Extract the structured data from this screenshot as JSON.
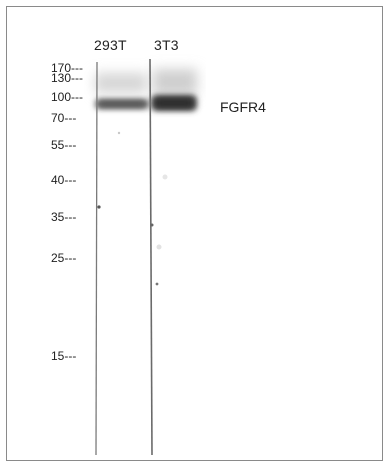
{
  "lanes": [
    {
      "label": "293T"
    },
    {
      "label": "3T3"
    }
  ],
  "markers": [
    {
      "label": "170---"
    },
    {
      "label": "130---"
    },
    {
      "label": "100---"
    },
    {
      "label": "70---"
    },
    {
      "label": "55---"
    },
    {
      "label": "40---"
    },
    {
      "label": "35---"
    },
    {
      "label": "25---"
    },
    {
      "label": "15---"
    }
  ],
  "band": {
    "label": "FGFR4"
  },
  "colors": {
    "band": "#3f3f3f",
    "lane_line": "#6a6a6a",
    "border": "#8a8a8a"
  }
}
